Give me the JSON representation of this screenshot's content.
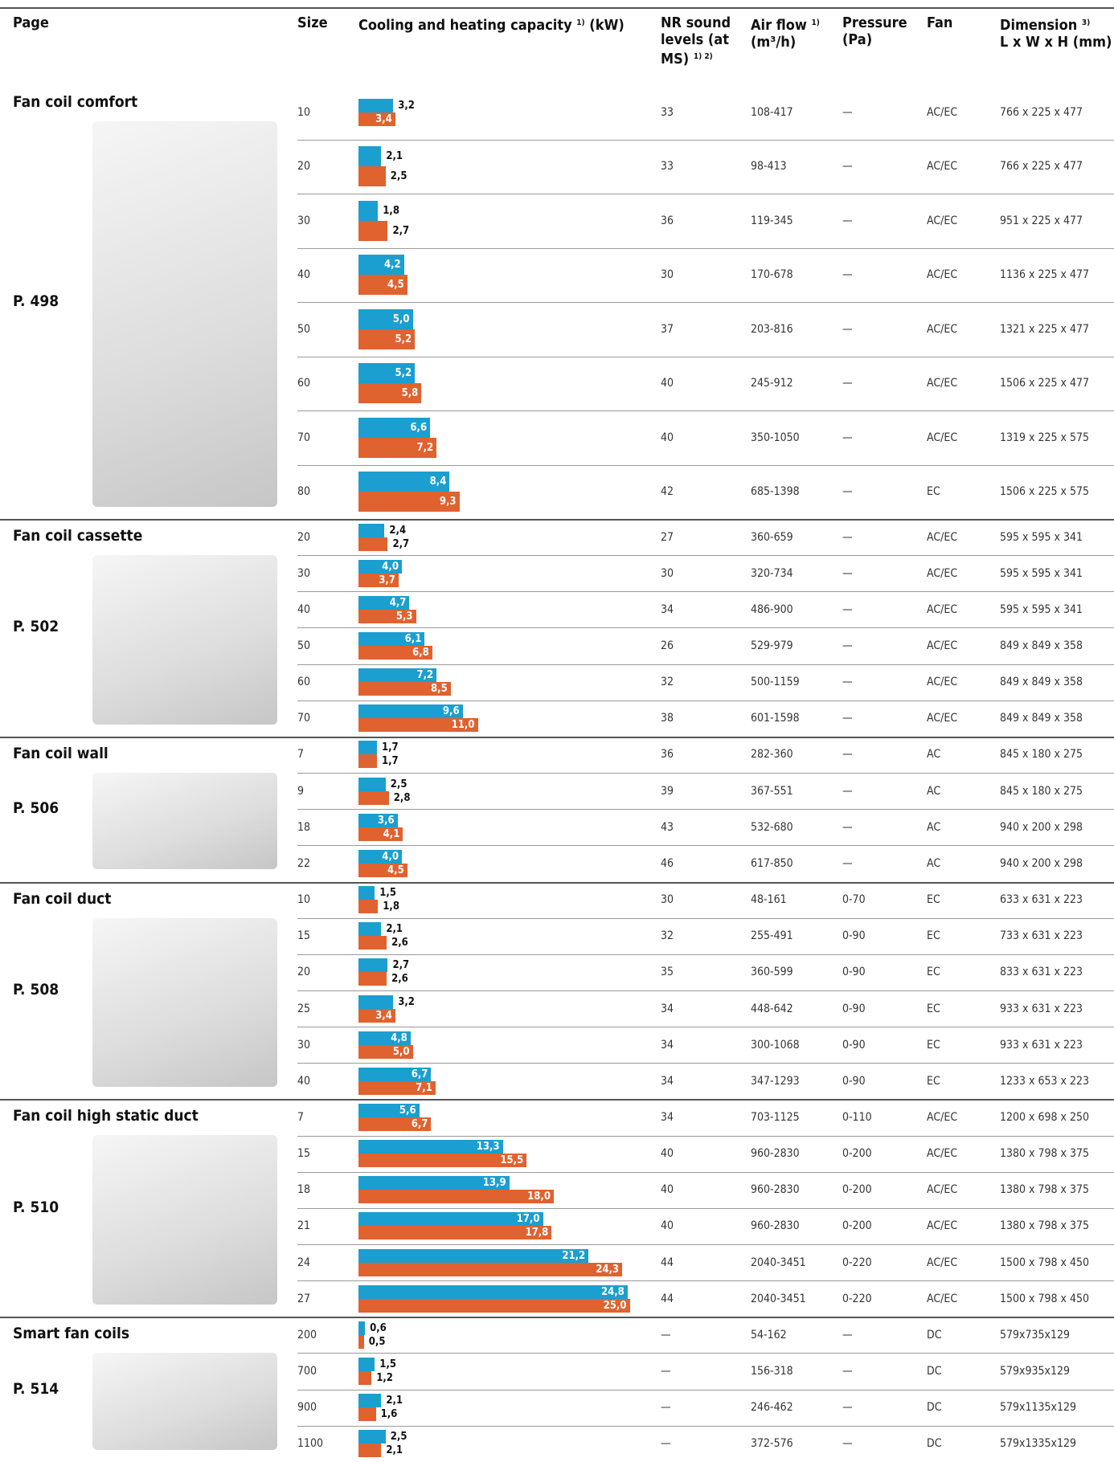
{
  "header": {
    "columns": [
      {
        "text": "Page"
      },
      {
        "text": "Size"
      },
      {
        "text": "Cooling and heating capacity",
        "sup": "1)",
        "unit": "(kW)"
      },
      {
        "text": "NR sound levels (at MS)",
        "sup": "1) 2)"
      },
      {
        "text": "Air flow",
        "sup": "1)",
        "unit": "(m³/h)"
      },
      {
        "text": "Pressure",
        "unit": "(Pa)"
      },
      {
        "text": "Fan"
      },
      {
        "text": "Dimension",
        "sup": "3)",
        "unit": "L x W x H (mm)"
      }
    ]
  },
  "groups": [
    {
      "title": "Fan coil comfort",
      "page": "P. 498",
      "rows": [
        {
          "size": "10",
          "cooling": {
            "value": 3.2,
            "label": "3,2"
          },
          "heating": {
            "value": 3.4,
            "label": "3,4"
          },
          "nr": "33",
          "airflow": "108-417",
          "pressure": "—",
          "fan": "AC/EC",
          "dimension": "766 x 225 x 477"
        },
        {
          "size": "20",
          "cooling": {
            "value": 2.1,
            "label": "2,1"
          },
          "heating": {
            "value": 2.5,
            "label": "2,5"
          },
          "nr": "33",
          "airflow": "98-413",
          "pressure": "—",
          "fan": "AC/EC",
          "dimension": "766 x 225 x 477"
        },
        {
          "size": "30",
          "cooling": {
            "value": 1.8,
            "label": "1,8"
          },
          "heating": {
            "value": 2.7,
            "label": "2,7"
          },
          "nr": "36",
          "airflow": "119-345",
          "pressure": "—",
          "fan": "AC/EC",
          "dimension": "951 x 225 x 477"
        },
        {
          "size": "40",
          "cooling": {
            "value": 4.2,
            "label": "4,2"
          },
          "heating": {
            "value": 4.5,
            "label": "4,5"
          },
          "nr": "30",
          "airflow": "170-678",
          "pressure": "—",
          "fan": "AC/EC",
          "dimension": "1136 x 225 x 477"
        },
        {
          "size": "50",
          "cooling": {
            "value": 5.0,
            "label": "5,0"
          },
          "heating": {
            "value": 5.2,
            "label": "5,2"
          },
          "nr": "37",
          "airflow": "203-816",
          "pressure": "—",
          "fan": "AC/EC",
          "dimension": "1321 x 225 x 477"
        },
        {
          "size": "60",
          "cooling": {
            "value": 5.2,
            "label": "5,2"
          },
          "heating": {
            "value": 5.8,
            "label": "5,8"
          },
          "nr": "40",
          "airflow": "245-912",
          "pressure": "—",
          "fan": "AC/EC",
          "dimension": "1506 x 225 x 477"
        },
        {
          "size": "70",
          "cooling": {
            "value": 6.6,
            "label": "6,6"
          },
          "heating": {
            "value": 7.2,
            "label": "7,2"
          },
          "nr": "40",
          "airflow": "350-1050",
          "pressure": "—",
          "fan": "AC/EC",
          "dimension": "1319 x 225 x 575"
        },
        {
          "size": "80",
          "cooling": {
            "value": 8.4,
            "label": "8,4"
          },
          "heating": {
            "value": 9.3,
            "label": "9,3"
          },
          "nr": "42",
          "airflow": "685-1398",
          "pressure": "—",
          "fan": "EC",
          "dimension": "1506 x 225 x 575"
        }
      ]
    },
    {
      "title": "Fan coil cassette",
      "page": "P. 502",
      "rows": [
        {
          "size": "20",
          "cooling": {
            "value": 2.4,
            "label": "2,4"
          },
          "heating": {
            "value": 2.7,
            "label": "2,7"
          },
          "nr": "27",
          "airflow": "360-659",
          "pressure": "—",
          "fan": "AC/EC",
          "dimension": "595 x 595 x 341"
        },
        {
          "size": "30",
          "cooling": {
            "value": 4.0,
            "label": "4,0"
          },
          "heating": {
            "value": 3.7,
            "label": "3,7"
          },
          "nr": "30",
          "airflow": "320-734",
          "pressure": "—",
          "fan": "AC/EC",
          "dimension": "595 x 595 x 341"
        },
        {
          "size": "40",
          "cooling": {
            "value": 4.7,
            "label": "4,7"
          },
          "heating": {
            "value": 5.3,
            "label": "5,3"
          },
          "nr": "34",
          "airflow": "486-900",
          "pressure": "—",
          "fan": "AC/EC",
          "dimension": "595 x 595 x 341"
        },
        {
          "size": "50",
          "cooling": {
            "value": 6.1,
            "label": "6,1"
          },
          "heating": {
            "value": 6.8,
            "label": "6,8"
          },
          "nr": "26",
          "airflow": "529-979",
          "pressure": "—",
          "fan": "AC/EC",
          "dimension": "849 x 849 x 358"
        },
        {
          "size": "60",
          "cooling": {
            "value": 7.2,
            "label": "7,2"
          },
          "heating": {
            "value": 8.5,
            "label": "8,5"
          },
          "nr": "32",
          "airflow": "500-1159",
          "pressure": "—",
          "fan": "AC/EC",
          "dimension": "849 x 849 x 358"
        },
        {
          "size": "70",
          "cooling": {
            "value": 9.6,
            "label": "9,6"
          },
          "heating": {
            "value": 11.0,
            "label": "11,0"
          },
          "nr": "38",
          "airflow": "601-1598",
          "pressure": "—",
          "fan": "AC/EC",
          "dimension": "849 x 849 x 358"
        }
      ]
    },
    {
      "title": "Fan coil wall",
      "page": "P. 506",
      "rows": [
        {
          "size": "7",
          "cooling": {
            "value": 1.7,
            "label": "1,7"
          },
          "heating": {
            "value": 1.7,
            "label": "1,7"
          },
          "nr": "36",
          "airflow": "282-360",
          "pressure": "—",
          "fan": "AC",
          "dimension": "845 x 180 x 275"
        },
        {
          "size": "9",
          "cooling": {
            "value": 2.5,
            "label": "2,5"
          },
          "heating": {
            "value": 2.8,
            "label": "2,8"
          },
          "nr": "39",
          "airflow": "367-551",
          "pressure": "—",
          "fan": "AC",
          "dimension": "845 x 180 x 275"
        },
        {
          "size": "18",
          "cooling": {
            "value": 3.6,
            "label": "3,6"
          },
          "heating": {
            "value": 4.1,
            "label": "4,1"
          },
          "nr": "43",
          "airflow": "532-680",
          "pressure": "—",
          "fan": "AC",
          "dimension": "940 x 200 x 298"
        },
        {
          "size": "22",
          "cooling": {
            "value": 4.0,
            "label": "4,0"
          },
          "heating": {
            "value": 4.5,
            "label": "4,5"
          },
          "nr": "46",
          "airflow": "617-850",
          "pressure": "—",
          "fan": "AC",
          "dimension": "940 x 200 x 298"
        }
      ]
    },
    {
      "title": "Fan coil duct",
      "page": "P. 508",
      "rows": [
        {
          "size": "10",
          "cooling": {
            "value": 1.5,
            "label": "1,5"
          },
          "heating": {
            "value": 1.8,
            "label": "1,8"
          },
          "nr": "30",
          "airflow": "48-161",
          "pressure": "0-70",
          "fan": "EC",
          "dimension": "633 x 631 x 223"
        },
        {
          "size": "15",
          "cooling": {
            "value": 2.1,
            "label": "2,1"
          },
          "heating": {
            "value": 2.6,
            "label": "2,6"
          },
          "nr": "32",
          "airflow": "255-491",
          "pressure": "0-90",
          "fan": "EC",
          "dimension": "733 x 631 x 223"
        },
        {
          "size": "20",
          "cooling": {
            "value": 2.7,
            "label": "2,7"
          },
          "heating": {
            "value": 2.6,
            "label": "2,6"
          },
          "nr": "35",
          "airflow": "360-599",
          "pressure": "0-90",
          "fan": "EC",
          "dimension": "833 x 631 x 223"
        },
        {
          "size": "25",
          "cooling": {
            "value": 3.2,
            "label": "3,2"
          },
          "heating": {
            "value": 3.4,
            "label": "3,4"
          },
          "nr": "34",
          "airflow": "448-642",
          "pressure": "0-90",
          "fan": "EC",
          "dimension": "933 x 631 x 223"
        },
        {
          "size": "30",
          "cooling": {
            "value": 4.8,
            "label": "4,8"
          },
          "heating": {
            "value": 5.0,
            "label": "5,0"
          },
          "nr": "34",
          "airflow": "300-1068",
          "pressure": "0-90",
          "fan": "EC",
          "dimension": "933 x 631 x 223"
        },
        {
          "size": "40",
          "cooling": {
            "value": 6.7,
            "label": "6,7"
          },
          "heating": {
            "value": 7.1,
            "label": "7,1"
          },
          "nr": "34",
          "airflow": "347-1293",
          "pressure": "0-90",
          "fan": "EC",
          "dimension": "1233 x 653 x 223"
        }
      ]
    },
    {
      "title": "Fan coil high static duct",
      "page": "P. 510",
      "rows": [
        {
          "size": "7",
          "cooling": {
            "value": 5.6,
            "label": "5,6"
          },
          "heating": {
            "value": 6.7,
            "label": "6,7"
          },
          "nr": "34",
          "airflow": "703-1125",
          "pressure": "0-110",
          "fan": "AC/EC",
          "dimension": "1200 x 698 x 250"
        },
        {
          "size": "15",
          "cooling": {
            "value": 13.3,
            "label": "13,3"
          },
          "heating": {
            "value": 15.5,
            "label": "15,5"
          },
          "nr": "40",
          "airflow": "960-2830",
          "pressure": "0-200",
          "fan": "AC/EC",
          "dimension": "1380 x 798 x 375"
        },
        {
          "size": "18",
          "cooling": {
            "value": 13.9,
            "label": "13,9"
          },
          "heating": {
            "value": 18.0,
            "label": "18,0"
          },
          "nr": "40",
          "airflow": "960-2830",
          "pressure": "0-200",
          "fan": "AC/EC",
          "dimension": "1380 x 798 x 375"
        },
        {
          "size": "21",
          "cooling": {
            "value": 17.0,
            "label": "17,0"
          },
          "heating": {
            "value": 17.8,
            "label": "17,8"
          },
          "nr": "40",
          "airflow": "960-2830",
          "pressure": "0-200",
          "fan": "AC/EC",
          "dimension": "1380 x 798 x 375"
        },
        {
          "size": "24",
          "cooling": {
            "value": 21.2,
            "label": "21,2"
          },
          "heating": {
            "value": 24.3,
            "label": "24,3"
          },
          "nr": "44",
          "airflow": "2040-3451",
          "pressure": "0-220",
          "fan": "AC/EC",
          "dimension": "1500 x 798 x 450"
        },
        {
          "size": "27",
          "cooling": {
            "value": 24.8,
            "label": "24,8"
          },
          "heating": {
            "value": 25.0,
            "label": "25,0"
          },
          "nr": "44",
          "airflow": "2040-3451",
          "pressure": "0-220",
          "fan": "AC/EC",
          "dimension": "1500 x 798 x 450"
        }
      ]
    },
    {
      "title": "Smart fan coils",
      "page": "P. 514",
      "rows": [
        {
          "size": "200",
          "cooling": {
            "value": 0.6,
            "label": "0,6"
          },
          "heating": {
            "value": 0.5,
            "label": "0,5"
          },
          "nr": "—",
          "airflow": "54-162",
          "pressure": "—",
          "fan": "DC",
          "dimension": "579x735x129"
        },
        {
          "size": "700",
          "cooling": {
            "value": 1.5,
            "label": "1,5"
          },
          "heating": {
            "value": 1.2,
            "label": "1,2"
          },
          "nr": "—",
          "airflow": "156-318",
          "pressure": "—",
          "fan": "DC",
          "dimension": "579x935x129"
        },
        {
          "size": "900",
          "cooling": {
            "value": 2.1,
            "label": "2,1"
          },
          "heating": {
            "value": 1.6,
            "label": "1,6"
          },
          "nr": "—",
          "airflow": "246-462",
          "pressure": "—",
          "fan": "DC",
          "dimension": "579x1135x129"
        },
        {
          "size": "1100",
          "cooling": {
            "value": 2.5,
            "label": "2,5"
          },
          "heating": {
            "value": 2.1,
            "label": "2,1"
          },
          "nr": "—",
          "airflow": "372-576",
          "pressure": "—",
          "fan": "DC",
          "dimension": "579x1335x129"
        }
      ]
    }
  ]
}
